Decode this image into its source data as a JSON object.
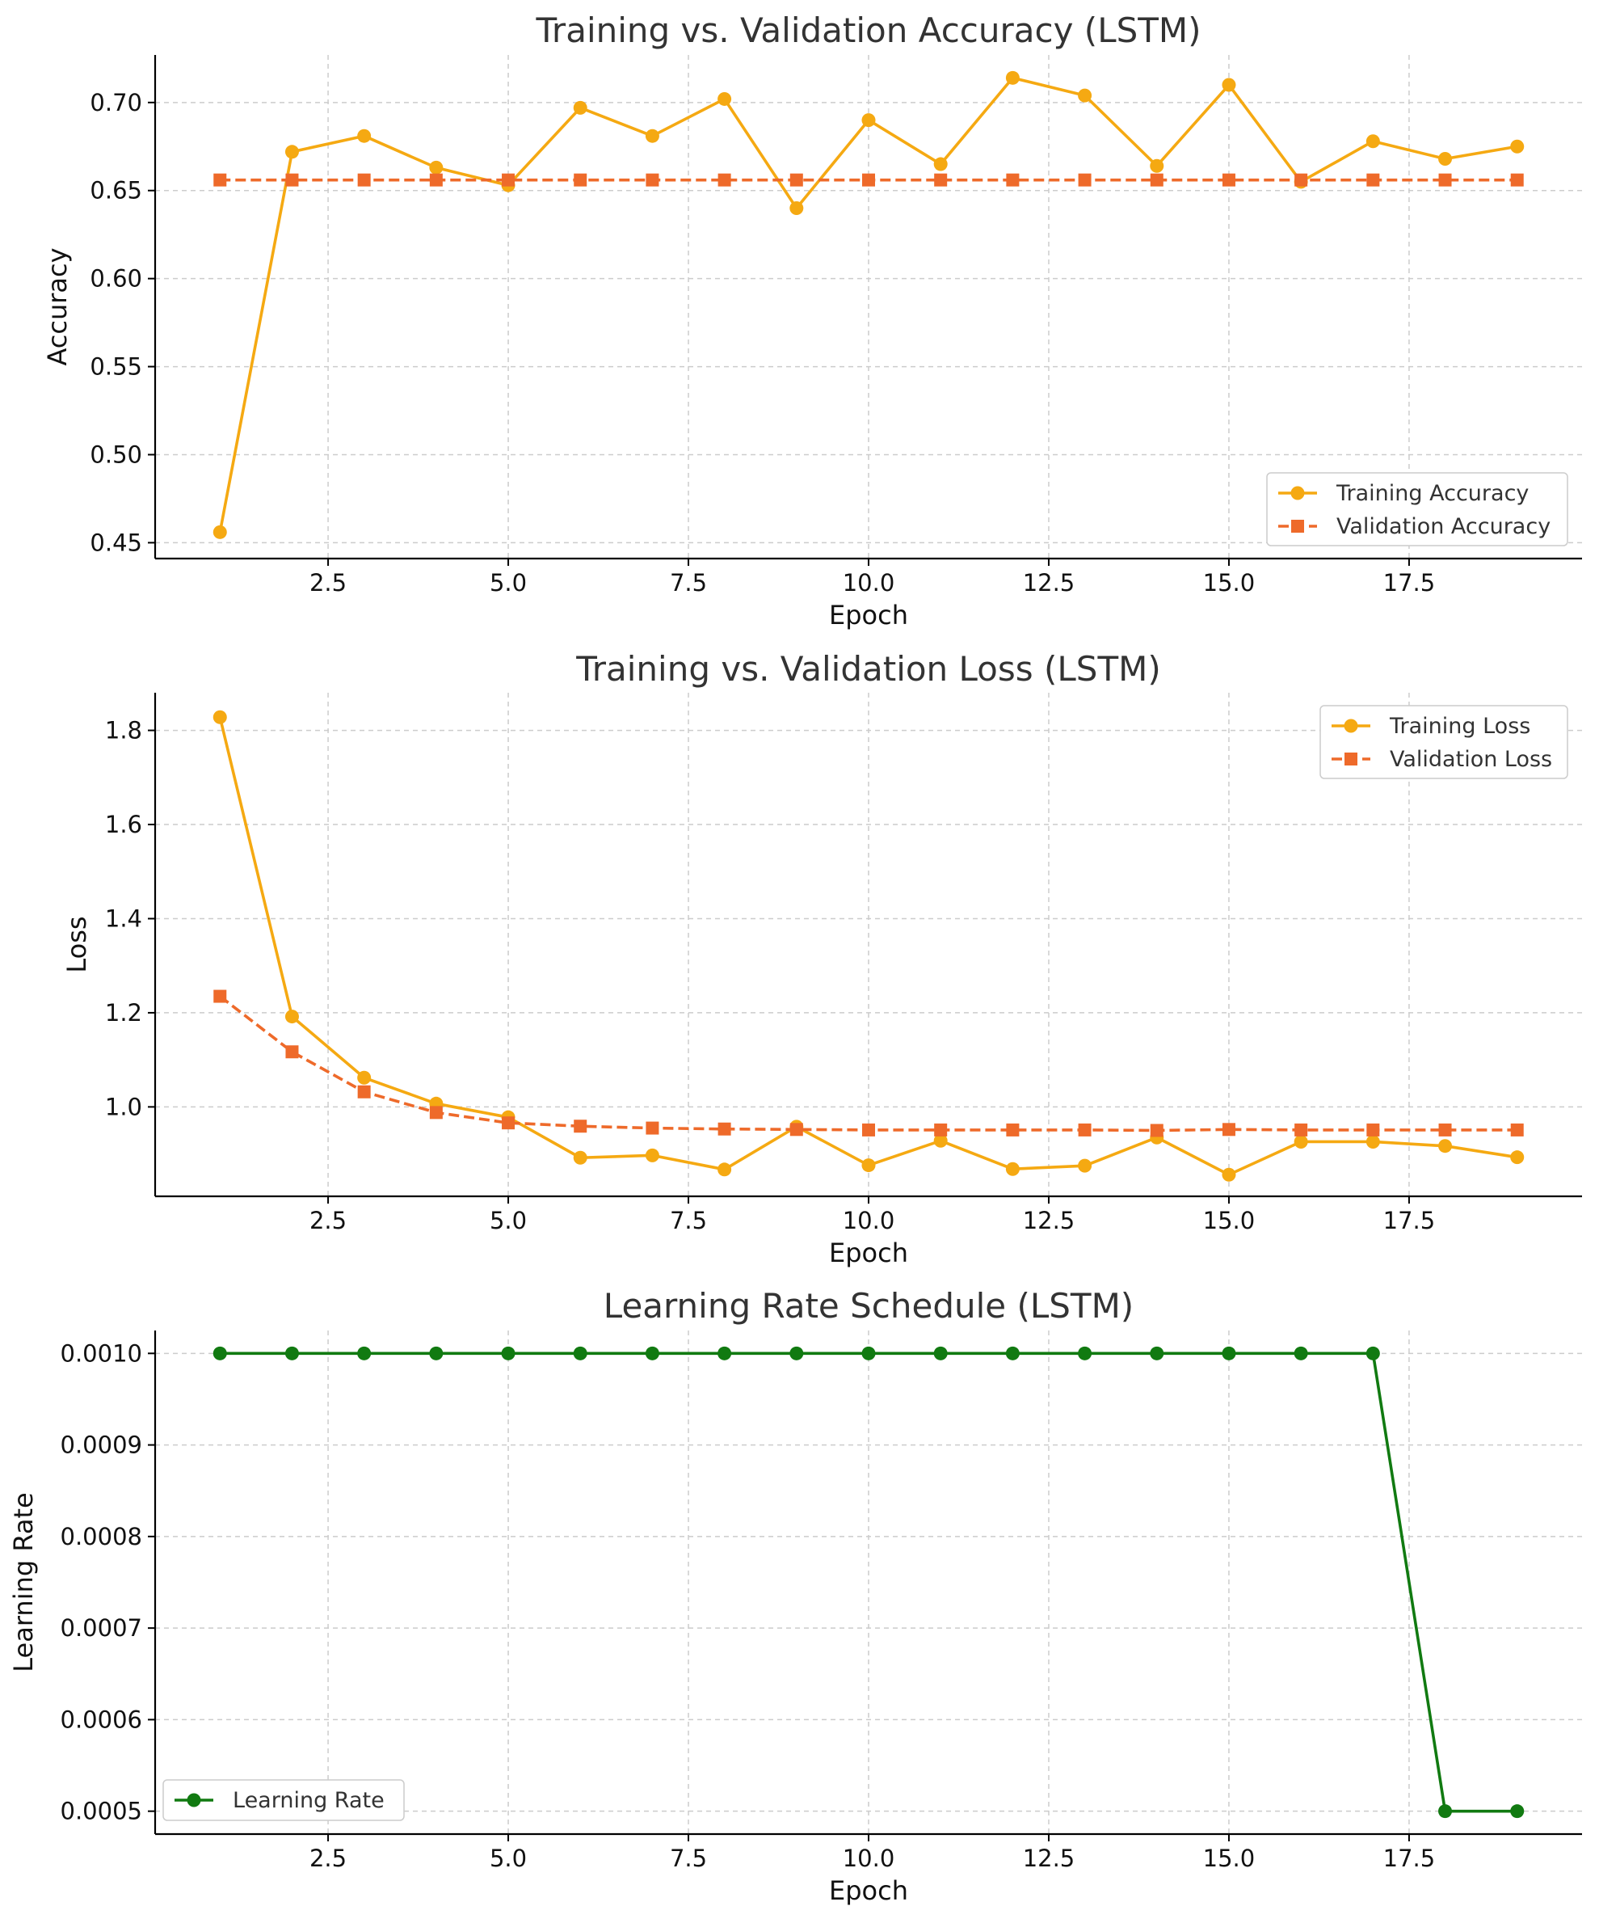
{
  "colors": {
    "training": "#F5A912",
    "validation": "#EE6A2A",
    "learning_rate": "#117A11"
  },
  "chart_data": [
    {
      "type": "line",
      "title": "Training vs. Validation Accuracy (LSTM)",
      "xlabel": "Epoch",
      "ylabel": "Accuracy",
      "xlim": [
        0.1,
        19.9
      ],
      "ylim": [
        0.441,
        0.727
      ],
      "xticks": [
        2.5,
        5.0,
        7.5,
        10.0,
        12.5,
        15.0,
        17.5
      ],
      "xtick_labels": [
        "2.5",
        "5.0",
        "7.5",
        "10.0",
        "12.5",
        "15.0",
        "17.5"
      ],
      "yticks": [
        0.45,
        0.5,
        0.55,
        0.6,
        0.65,
        0.7
      ],
      "ytick_labels": [
        "0.45",
        "0.50",
        "0.55",
        "0.60",
        "0.65",
        "0.70"
      ],
      "grid": true,
      "legend_position": "lower-right",
      "x": [
        1,
        2,
        3,
        4,
        5,
        6,
        7,
        8,
        9,
        10,
        11,
        12,
        13,
        14,
        15,
        16,
        17,
        18,
        19
      ],
      "series": [
        {
          "name": "Training Accuracy",
          "marker": "circle",
          "dash": "solid",
          "color": "#F5A912",
          "values": [
            0.456,
            0.672,
            0.681,
            0.663,
            0.653,
            0.697,
            0.681,
            0.702,
            0.64,
            0.69,
            0.665,
            0.714,
            0.704,
            0.664,
            0.71,
            0.655,
            0.678,
            0.668,
            0.675
          ]
        },
        {
          "name": "Validation Accuracy",
          "marker": "square",
          "dash": "dashed",
          "color": "#EE6A2A",
          "values": [
            0.656,
            0.656,
            0.656,
            0.656,
            0.656,
            0.656,
            0.656,
            0.656,
            0.656,
            0.656,
            0.656,
            0.656,
            0.656,
            0.656,
            0.656,
            0.656,
            0.656,
            0.656,
            0.656
          ]
        }
      ]
    },
    {
      "type": "line",
      "title": "Training vs. Validation Loss (LSTM)",
      "xlabel": "Epoch",
      "ylabel": "Loss",
      "xlim": [
        0.1,
        19.9
      ],
      "ylim": [
        0.81,
        1.88
      ],
      "xticks": [
        2.5,
        5.0,
        7.5,
        10.0,
        12.5,
        15.0,
        17.5
      ],
      "xtick_labels": [
        "2.5",
        "5.0",
        "7.5",
        "10.0",
        "12.5",
        "15.0",
        "17.5"
      ],
      "yticks": [
        1.0,
        1.2,
        1.4,
        1.6,
        1.8
      ],
      "ytick_labels": [
        "1.0",
        "1.2",
        "1.4",
        "1.6",
        "1.8"
      ],
      "grid": true,
      "legend_position": "upper-right",
      "x": [
        1,
        2,
        3,
        4,
        5,
        6,
        7,
        8,
        9,
        10,
        11,
        12,
        13,
        14,
        15,
        16,
        17,
        18,
        19
      ],
      "series": [
        {
          "name": "Training Loss",
          "marker": "circle",
          "dash": "solid",
          "color": "#F5A912",
          "values": [
            1.828,
            1.192,
            1.062,
            1.007,
            0.978,
            0.892,
            0.897,
            0.867,
            0.958,
            0.876,
            0.928,
            0.868,
            0.875,
            0.935,
            0.856,
            0.926,
            0.926,
            0.917,
            0.893
          ]
        },
        {
          "name": "Validation Loss",
          "marker": "square",
          "dash": "dashed",
          "color": "#EE6A2A",
          "values": [
            1.235,
            1.117,
            1.032,
            0.988,
            0.966,
            0.959,
            0.955,
            0.953,
            0.952,
            0.951,
            0.951,
            0.951,
            0.951,
            0.95,
            0.952,
            0.951,
            0.951,
            0.951,
            0.951
          ]
        }
      ]
    },
    {
      "type": "line",
      "title": "Learning Rate Schedule (LSTM)",
      "xlabel": "Epoch",
      "ylabel": "Learning Rate",
      "xlim": [
        0.1,
        19.9
      ],
      "ylim": [
        0.000475,
        0.001025
      ],
      "xticks": [
        2.5,
        5.0,
        7.5,
        10.0,
        12.5,
        15.0,
        17.5
      ],
      "xtick_labels": [
        "2.5",
        "5.0",
        "7.5",
        "10.0",
        "12.5",
        "15.0",
        "17.5"
      ],
      "yticks": [
        0.0005,
        0.0006,
        0.0007,
        0.0008,
        0.0009,
        0.001
      ],
      "ytick_labels": [
        "0.0005",
        "0.0006",
        "0.0007",
        "0.0008",
        "0.0009",
        "0.0010"
      ],
      "grid": true,
      "legend_position": "lower-left",
      "x": [
        1,
        2,
        3,
        4,
        5,
        6,
        7,
        8,
        9,
        10,
        11,
        12,
        13,
        14,
        15,
        16,
        17,
        18,
        19
      ],
      "series": [
        {
          "name": "Learning Rate",
          "marker": "circle",
          "dash": "solid",
          "color": "#117A11",
          "values": [
            0.001,
            0.001,
            0.001,
            0.001,
            0.001,
            0.001,
            0.001,
            0.001,
            0.001,
            0.001,
            0.001,
            0.001,
            0.001,
            0.001,
            0.001,
            0.001,
            0.001,
            0.0005,
            0.0005
          ]
        }
      ]
    }
  ]
}
